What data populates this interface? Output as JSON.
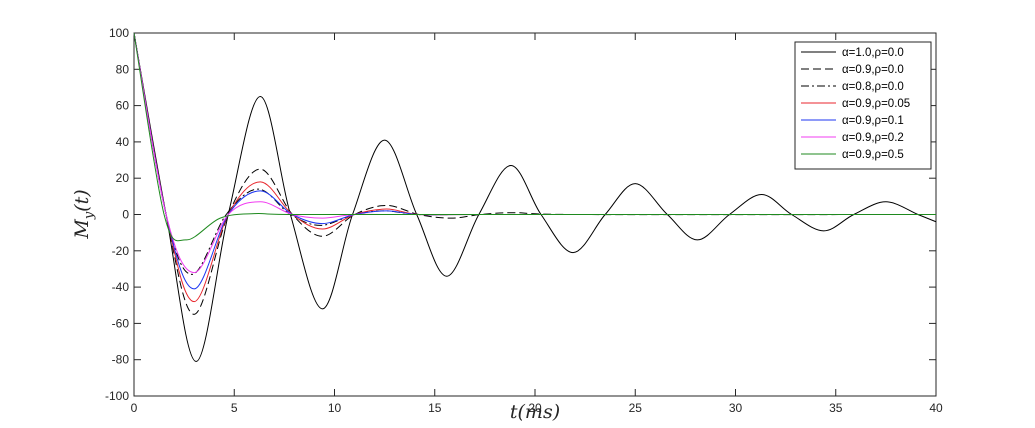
{
  "chart_data": {
    "type": "line",
    "title": "",
    "xlabel": "t(ms)",
    "ylabel": "M_y(t)",
    "xlim": [
      0,
      40
    ],
    "ylim": [
      -100,
      100
    ],
    "xticks": [
      0,
      5,
      10,
      15,
      20,
      25,
      30,
      35,
      40
    ],
    "xtick_labels": [
      "0",
      "5",
      "10",
      "15",
      "20",
      "25",
      "30",
      "35",
      "40"
    ],
    "yticks": [
      100,
      80,
      60,
      40,
      20,
      0,
      -20,
      -40,
      -60,
      -80,
      -100
    ],
    "ytick_labels": [
      "100",
      "80",
      "60",
      "40",
      "20",
      "0",
      "-20",
      "-40",
      "-60",
      "-80",
      "-100"
    ],
    "grid": false,
    "legend_position": "top-right",
    "series": [
      {
        "name": "α=1.0,ρ=0.0",
        "color": "#000000",
        "dash": "solid",
        "x": [
          0,
          1.6,
          3.1,
          4.7,
          6.3,
          7.8,
          9.4,
          10.9,
          12.5,
          14.1,
          15.6,
          17.2,
          18.8,
          20.3,
          21.9,
          23.5,
          25.0,
          26.6,
          28.1,
          29.7,
          31.3,
          32.8,
          34.4,
          35.9,
          37.5,
          39.1,
          40.0
        ],
        "y": [
          100,
          0,
          -81,
          0,
          65,
          0,
          -52,
          0,
          41,
          0,
          -34,
          0,
          27,
          0,
          -21,
          0,
          17,
          0,
          -14,
          0,
          11,
          0,
          -9,
          0,
          7,
          0,
          -4
        ]
      },
      {
        "name": "α=0.9,ρ=0.0",
        "color": "#000000",
        "dash": "dashed",
        "x": [
          0,
          1.6,
          3.0,
          4.7,
          6.3,
          7.9,
          9.4,
          11.0,
          12.6,
          14.2,
          15.8,
          17.3,
          19.0,
          22.0,
          40.0
        ],
        "y": [
          100,
          0,
          -55,
          0,
          25,
          0,
          -12,
          0,
          5,
          0,
          -2,
          0,
          1,
          0,
          0
        ]
      },
      {
        "name": "α=0.8,ρ=0.0",
        "color": "#000000",
        "dash": "dashdot",
        "x": [
          0,
          1.6,
          2.9,
          4.6,
          6.2,
          7.8,
          9.3,
          11.0,
          12.5,
          14.2,
          17.0,
          40.0
        ],
        "y": [
          100,
          0,
          -33,
          0,
          14,
          0,
          -6,
          0,
          2,
          0,
          0,
          0
        ]
      },
      {
        "name": "α=0.9,ρ=0.05",
        "color": "#e8262c",
        "dash": "solid",
        "x": [
          0,
          1.6,
          3.0,
          4.7,
          6.3,
          7.9,
          9.4,
          11.0,
          12.6,
          14.2,
          17.0,
          40.0
        ],
        "y": [
          100,
          0,
          -48,
          0,
          18,
          0,
          -8,
          0,
          3,
          0,
          0,
          0
        ]
      },
      {
        "name": "α=0.9,ρ=0.1",
        "color": "#1c36f2",
        "dash": "solid",
        "x": [
          0,
          1.6,
          3.0,
          4.7,
          6.3,
          7.9,
          9.4,
          11.0,
          12.6,
          14.2,
          17.0,
          40.0
        ],
        "y": [
          100,
          0,
          -41,
          0,
          13,
          0,
          -5,
          0,
          2,
          0,
          0,
          0
        ]
      },
      {
        "name": "α=0.9,ρ=0.2",
        "color": "#f13cf1",
        "dash": "solid",
        "x": [
          0,
          1.6,
          3.0,
          4.7,
          6.3,
          7.9,
          9.4,
          11.0,
          13.0,
          40.0
        ],
        "y": [
          100,
          0,
          -32,
          0,
          7,
          0,
          -2,
          0,
          0,
          0
        ]
      },
      {
        "name": "α=0.9,ρ=0.5",
        "color": "#1f8a1f",
        "dash": "solid",
        "x": [
          0,
          1.5,
          2.6,
          4.3,
          6.0,
          8.0,
          40.0
        ],
        "y": [
          100,
          0,
          -14,
          -2,
          0.5,
          0,
          0
        ]
      }
    ]
  }
}
